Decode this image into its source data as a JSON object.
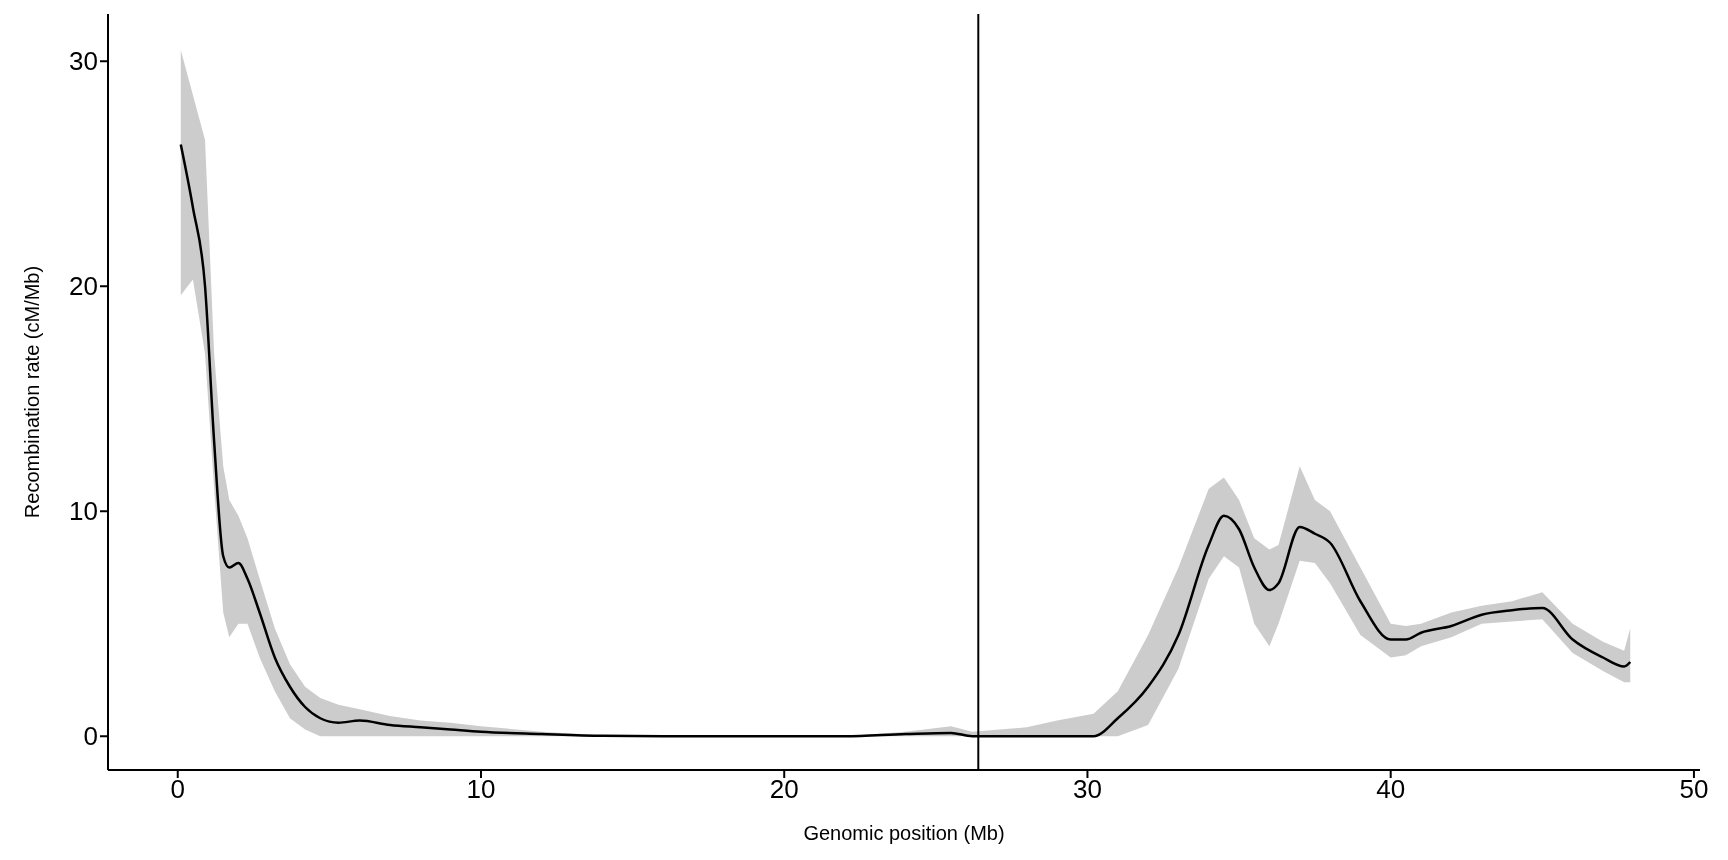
{
  "chart_data": {
    "type": "line",
    "xlabel": "Genomic position (Mb)",
    "ylabel": "Recombination rate (cM/Mb)",
    "x": [
      0.1,
      0.5,
      0.9,
      1.2,
      1.5,
      1.7,
      2.0,
      2.3,
      2.7,
      3.2,
      3.7,
      4.2,
      4.7,
      5.3,
      6,
      7,
      8,
      9,
      10,
      12,
      14,
      16,
      18,
      20,
      22,
      24,
      25.5,
      26.2,
      28,
      29,
      30.2,
      31,
      32,
      33,
      34,
      34.5,
      35,
      35.5,
      36,
      36.3,
      37,
      37.5,
      38,
      39,
      40,
      40.5,
      41,
      42,
      43,
      44,
      45,
      46,
      47,
      47.7,
      47.9
    ],
    "series": [
      {
        "color": "#000000",
        "values": [
          26.3,
          23.5,
          20,
          13.1,
          8,
          7.5,
          7.7,
          7,
          5.5,
          3.5,
          2.2,
          1.3,
          0.8,
          0.6,
          0.7,
          0.5,
          0.4,
          0.3,
          0.2,
          0.1,
          0.02,
          0,
          0,
          0,
          0,
          0.1,
          0.15,
          0,
          0,
          0,
          0,
          0.8,
          2.2,
          4.5,
          8.5,
          9.8,
          9.2,
          7.5,
          6.5,
          6.8,
          9.3,
          9,
          8.6,
          6,
          4.3,
          4.3,
          4.6,
          4.9,
          5.4,
          5.6,
          5.7,
          4.3,
          3.5,
          3.1,
          3.3
        ],
        "lower": [
          19.6,
          20.3,
          17,
          11,
          5.5,
          4.4,
          5,
          5,
          3.5,
          2,
          0.8,
          0.3,
          0,
          0,
          0,
          0,
          0,
          0,
          0,
          0,
          0,
          0,
          0,
          0,
          0,
          0,
          0,
          0,
          0,
          0,
          0,
          0,
          0.5,
          3,
          7,
          8,
          7.5,
          5,
          4,
          5,
          7.8,
          7.7,
          6.8,
          4.5,
          3.5,
          3.6,
          4,
          4.4,
          5,
          5.1,
          5.2,
          3.7,
          2.9,
          2.4,
          2.4
        ],
        "upper": [
          30.5,
          28.5,
          26.5,
          17,
          12,
          10.5,
          9.8,
          8.8,
          7,
          4.8,
          3.2,
          2.2,
          1.7,
          1.4,
          1.2,
          0.9,
          0.7,
          0.6,
          0.45,
          0.2,
          0.05,
          0,
          0,
          0,
          0,
          0.2,
          0.45,
          0.2,
          0.4,
          0.7,
          1,
          2,
          4.5,
          7.5,
          11,
          11.5,
          10.5,
          8.8,
          8.3,
          8.5,
          12,
          10.5,
          10,
          7.5,
          5,
          4.9,
          5,
          5.5,
          5.8,
          6,
          6.4,
          5,
          4.2,
          3.8,
          4.8
        ]
      }
    ],
    "xlim": [
      -2.3,
      50.2
    ],
    "xticks": [
      0,
      10,
      20,
      30,
      40,
      50
    ],
    "ylim": [
      -1.5,
      32.1
    ],
    "yticks": [
      0,
      10,
      20,
      30
    ],
    "ref_lines": [
      {
        "axis": "x",
        "value": 26.4,
        "color": "#000000"
      }
    ],
    "legend": false,
    "grid": false
  }
}
